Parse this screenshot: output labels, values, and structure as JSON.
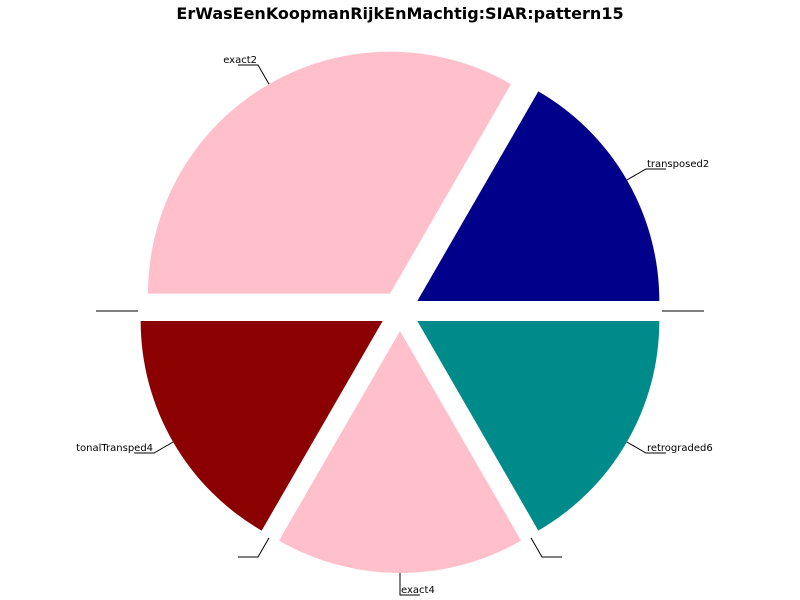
{
  "chart_data": {
    "type": "pie",
    "title": "ErWasEenKoopmanRijkEnMachtig:SIAR:pattern15",
    "slices": [
      {
        "label": "transposed2",
        "value": 1,
        "color": "#00008b",
        "exploded": true
      },
      {
        "label": "exact2",
        "value": 2,
        "color": "#ffc0cb",
        "exploded": true
      },
      {
        "label": "",
        "value": 0,
        "color": "#ffffff",
        "exploded": true
      },
      {
        "label": "tonalTransped4",
        "value": 1,
        "color": "#8b0000",
        "exploded": true
      },
      {
        "label": "",
        "value": 0,
        "color": "#ffffff",
        "exploded": true
      },
      {
        "label": "exact4",
        "value": 1,
        "color": "#ffc0cb",
        "exploded": true
      },
      {
        "label": "",
        "value": 0,
        "color": "#ffffff",
        "exploded": true
      },
      {
        "label": "retrograded6",
        "value": 1,
        "color": "#008b8b",
        "exploded": true
      },
      {
        "label": "",
        "value": 0,
        "color": "#ffffff",
        "exploded": true
      }
    ],
    "start_angle": "0 degrees (3 o'clock), counter-clockwise",
    "legend": "none"
  }
}
